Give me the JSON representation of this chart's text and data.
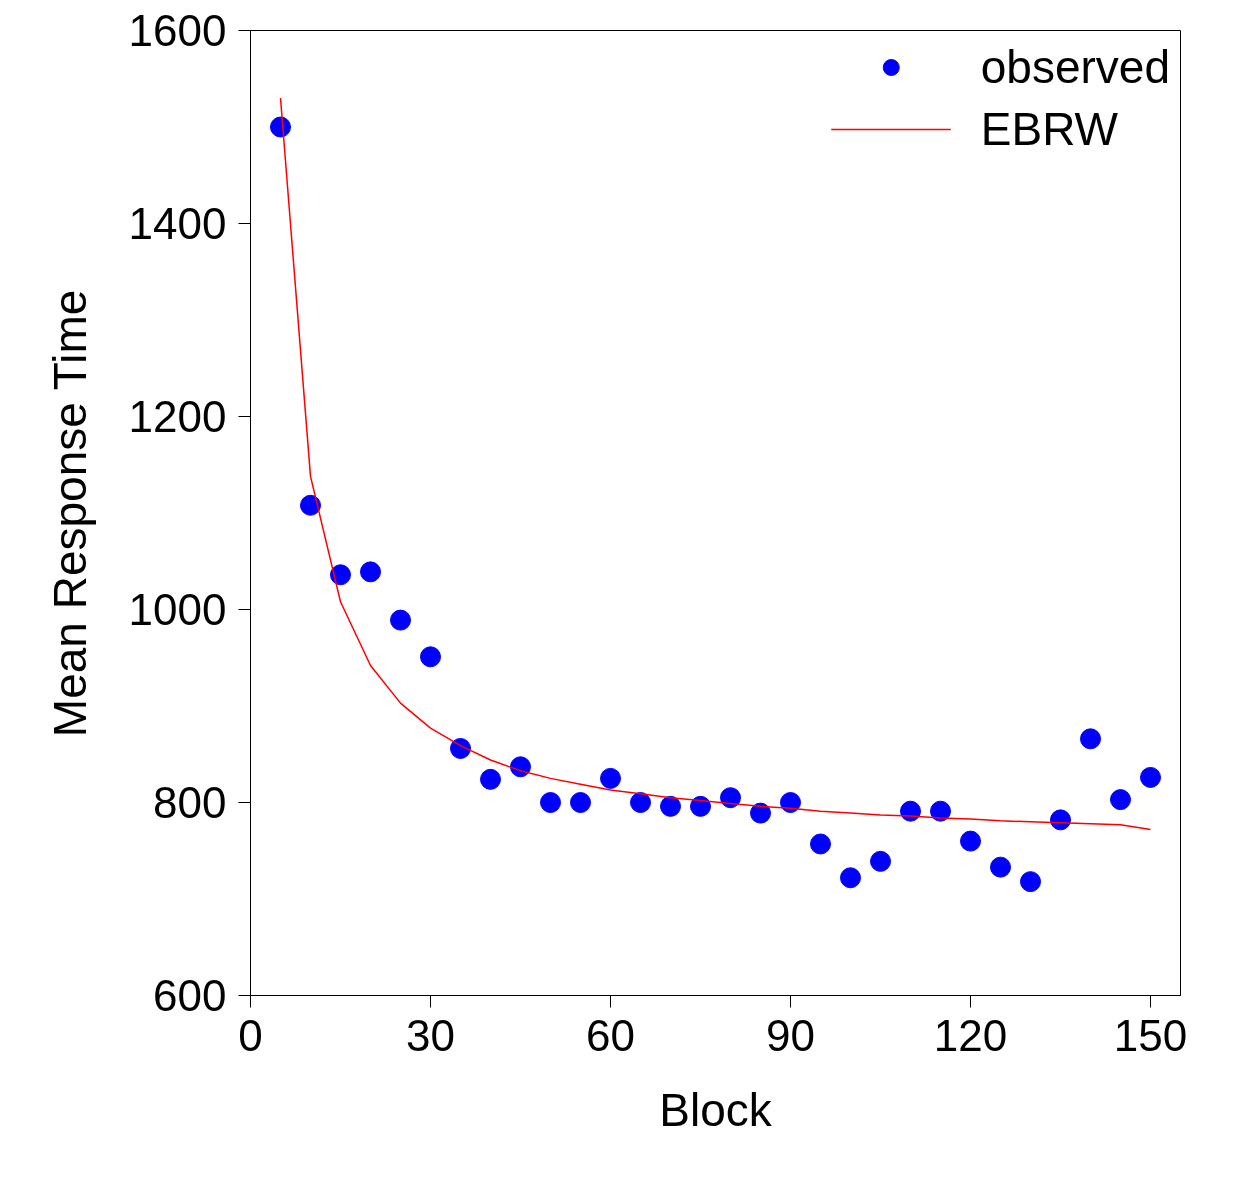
{
  "chart_data": {
    "type": "scatter",
    "xlabel": "Block",
    "ylabel": "Mean Response Time",
    "x": [
      5,
      10,
      15,
      20,
      25,
      30,
      35,
      40,
      45,
      50,
      55,
      60,
      65,
      70,
      75,
      80,
      85,
      90,
      95,
      100,
      105,
      110,
      115,
      120,
      125,
      130,
      135,
      140,
      145,
      150
    ],
    "series": [
      {
        "name": "observed",
        "color": "#0000ff",
        "marker": "circle",
        "values": [
          1500,
          1108,
          1036,
          1039,
          989,
          951,
          856,
          824,
          837,
          800,
          800,
          825,
          800,
          796,
          796,
          805,
          789,
          800,
          757,
          722,
          739,
          791,
          791,
          760,
          733,
          718,
          782,
          866,
          803,
          826
        ]
      },
      {
        "name": "EBRW",
        "type": "line",
        "color": "#ff0000",
        "line_style": "solid",
        "values": [
          1530,
          1138,
          1008,
          942,
          903,
          877,
          859,
          844,
          833,
          825,
          819,
          813,
          809,
          805,
          802,
          799,
          796,
          794,
          791,
          789,
          787,
          786,
          784,
          783,
          781,
          780,
          779,
          778,
          777,
          772
        ]
      }
    ],
    "xlim": [
      0,
      155
    ],
    "ylim": [
      600,
      1600
    ],
    "xticks": [
      0,
      30,
      60,
      90,
      120,
      150
    ],
    "yticks": [
      600,
      800,
      1000,
      1200,
      1400,
      1600
    ],
    "grid": false,
    "legend": "top right"
  }
}
